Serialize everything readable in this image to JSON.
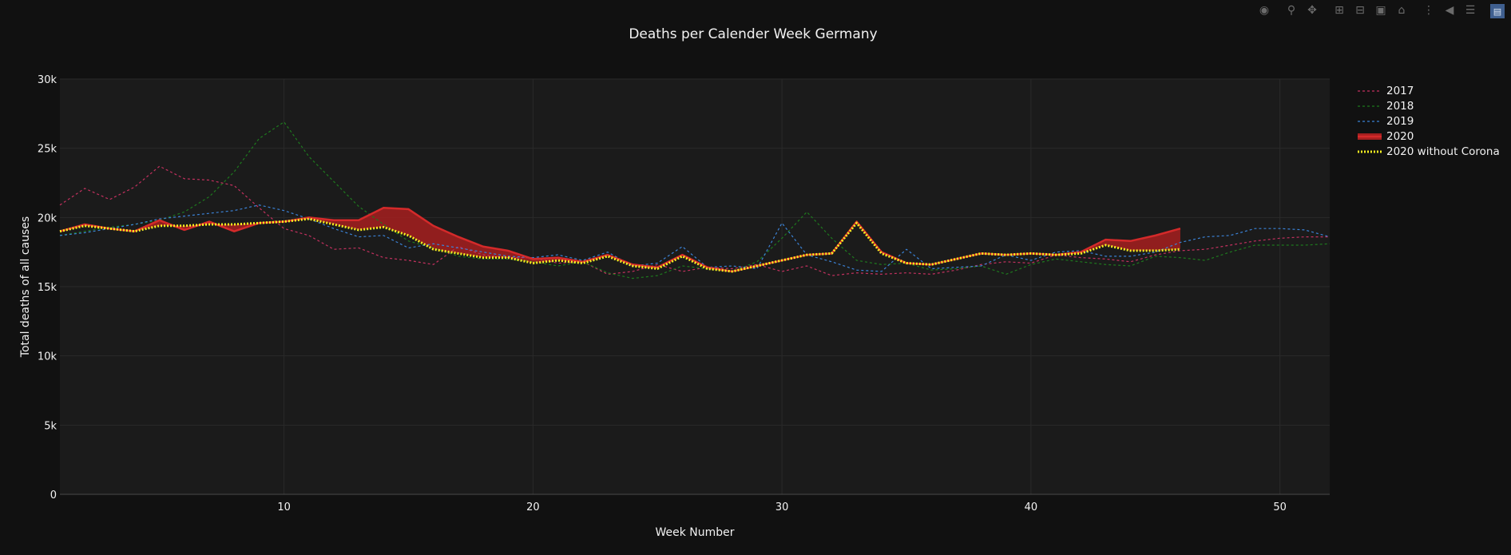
{
  "modebar": {
    "icons": [
      "camera-icon",
      "zoom-icon",
      "pan-icon",
      "zoom-in-icon",
      "zoom-out-icon",
      "autoscale-icon",
      "home-icon",
      "spike-lines-icon",
      "hover-closest-icon",
      "hover-compare-icon",
      "plotly-logo-icon"
    ]
  },
  "chart_data": {
    "type": "line",
    "title": "Deaths per Calender Week Germany",
    "xlabel": "Week Number",
    "ylabel": "Total deaths of all causes",
    "xlim": [
      1,
      52
    ],
    "ylim": [
      0,
      30000
    ],
    "x_ticks": [
      10,
      20,
      30,
      40,
      50
    ],
    "x_tick_labels": [
      "10",
      "20",
      "30",
      "40",
      "50"
    ],
    "y_ticks": [
      0,
      5000,
      10000,
      15000,
      20000,
      25000,
      30000
    ],
    "y_tick_labels": [
      "0",
      "5k",
      "10k",
      "15k",
      "20k",
      "25k",
      "30k"
    ],
    "grid": true,
    "legend_position": "right",
    "colors": {
      "background": "#111111",
      "plot_background": "#1b1b1b",
      "grid": "#2a2a2a",
      "2017": "#c4315f",
      "2018": "#1e7a1e",
      "2019": "#3b82d6",
      "2020": "#d42a2a",
      "2020_fill": "#a61f1f",
      "2020_without_corona": "#f5f020"
    },
    "series": [
      {
        "name": "2017",
        "style": "dashed",
        "x": [
          1,
          2,
          3,
          4,
          5,
          6,
          7,
          8,
          9,
          10,
          11,
          12,
          13,
          14,
          15,
          16,
          17,
          18,
          19,
          20,
          21,
          22,
          23,
          24,
          25,
          26,
          27,
          28,
          29,
          30,
          31,
          32,
          33,
          34,
          35,
          36,
          37,
          38,
          39,
          40,
          41,
          42,
          43,
          44,
          45,
          46,
          47,
          48,
          49,
          50,
          51,
          52
        ],
        "values": [
          20900,
          22100,
          21300,
          22200,
          23700,
          22800,
          22700,
          22300,
          20700,
          19200,
          18700,
          17700,
          17800,
          17100,
          16900,
          16600,
          17900,
          17300,
          17100,
          17100,
          16700,
          16800,
          15900,
          16100,
          16600,
          16100,
          16400,
          16300,
          16600,
          16100,
          16500,
          15800,
          16000,
          15900,
          16000,
          15900,
          16200,
          16600,
          16800,
          16700,
          17300,
          17100,
          17000,
          16800,
          17300,
          17600,
          17700,
          18000,
          18300,
          18500,
          18600,
          18600
        ]
      },
      {
        "name": "2018",
        "style": "dashed",
        "x": [
          1,
          2,
          3,
          4,
          5,
          6,
          7,
          8,
          9,
          10,
          11,
          12,
          13,
          14,
          15,
          16,
          17,
          18,
          19,
          20,
          21,
          22,
          23,
          24,
          25,
          26,
          27,
          28,
          29,
          30,
          31,
          32,
          33,
          34,
          35,
          36,
          37,
          38,
          39,
          40,
          41,
          42,
          43,
          44,
          45,
          46,
          47,
          48,
          49,
          50,
          51,
          52
        ],
        "values": [
          18700,
          19000,
          19300,
          19500,
          19800,
          20400,
          21500,
          23300,
          25700,
          26900,
          24400,
          22600,
          20800,
          19500,
          18300,
          17800,
          17200,
          17000,
          17000,
          16800,
          16500,
          16800,
          16000,
          15600,
          15800,
          16500,
          16300,
          16100,
          16800,
          18500,
          20400,
          18500,
          16900,
          16600,
          16700,
          16200,
          16300,
          16500,
          15900,
          16600,
          17000,
          16800,
          16600,
          16500,
          17200,
          17100,
          16900,
          17500,
          18000,
          18000,
          18000,
          18100
        ]
      },
      {
        "name": "2019",
        "style": "dashed",
        "x": [
          1,
          2,
          3,
          4,
          5,
          6,
          7,
          8,
          9,
          10,
          11,
          12,
          13,
          14,
          15,
          16,
          17,
          18,
          19,
          20,
          21,
          22,
          23,
          24,
          25,
          26,
          27,
          28,
          29,
          30,
          31,
          32,
          33,
          34,
          35,
          36,
          37,
          38,
          39,
          40,
          41,
          42,
          43,
          44,
          45,
          46,
          47,
          48,
          49,
          50,
          51,
          52
        ],
        "values": [
          18700,
          18900,
          19200,
          19500,
          19900,
          20100,
          20300,
          20500,
          20900,
          20500,
          19900,
          19200,
          18600,
          18700,
          17800,
          18100,
          17800,
          17500,
          17200,
          17100,
          17300,
          16900,
          17500,
          16500,
          16700,
          17900,
          16400,
          16500,
          16300,
          19600,
          17300,
          16800,
          16200,
          16100,
          17700,
          16300,
          16400,
          16500,
          17300,
          16900,
          17500,
          17600,
          17200,
          17200,
          17500,
          18200,
          18600,
          18700,
          19200,
          19200,
          19100,
          18600
        ]
      },
      {
        "name": "2020",
        "style": "solid-filled",
        "x": [
          1,
          2,
          3,
          4,
          5,
          6,
          7,
          8,
          9,
          10,
          11,
          12,
          13,
          14,
          15,
          16,
          17,
          18,
          19,
          20,
          21,
          22,
          23,
          24,
          25,
          26,
          27,
          28,
          29,
          30,
          31,
          32,
          33,
          34,
          35,
          36,
          37,
          38,
          39,
          40,
          41,
          42,
          43,
          44,
          45,
          46
        ],
        "values": [
          19000,
          19500,
          19200,
          19000,
          19800,
          19100,
          19700,
          19000,
          19600,
          19700,
          20000,
          19800,
          19800,
          20700,
          20600,
          19400,
          18600,
          17900,
          17600,
          17000,
          17100,
          16800,
          17300,
          16600,
          16400,
          17300,
          16400,
          16100,
          16500,
          16900,
          17300,
          17400,
          19700,
          17500,
          16700,
          16600,
          17000,
          17400,
          17300,
          17400,
          17300,
          17500,
          18400,
          18300,
          18700,
          19200
        ]
      },
      {
        "name": "2020 without Corona",
        "style": "dotted",
        "x": [
          1,
          2,
          3,
          4,
          5,
          6,
          7,
          8,
          9,
          10,
          11,
          12,
          13,
          14,
          15,
          16,
          17,
          18,
          19,
          20,
          21,
          22,
          23,
          24,
          25,
          26,
          27,
          28,
          29,
          30,
          31,
          32,
          33,
          34,
          35,
          36,
          37,
          38,
          39,
          40,
          41,
          42,
          43,
          44,
          45,
          46
        ],
        "values": [
          19000,
          19400,
          19200,
          19000,
          19400,
          19400,
          19500,
          19500,
          19600,
          19700,
          19900,
          19500,
          19100,
          19300,
          18700,
          17700,
          17400,
          17100,
          17100,
          16700,
          16900,
          16700,
          17200,
          16500,
          16300,
          17200,
          16300,
          16100,
          16500,
          16900,
          17300,
          17400,
          19600,
          17400,
          16700,
          16600,
          17000,
          17400,
          17300,
          17400,
          17300,
          17400,
          18000,
          17600,
          17600,
          17700
        ]
      }
    ]
  }
}
